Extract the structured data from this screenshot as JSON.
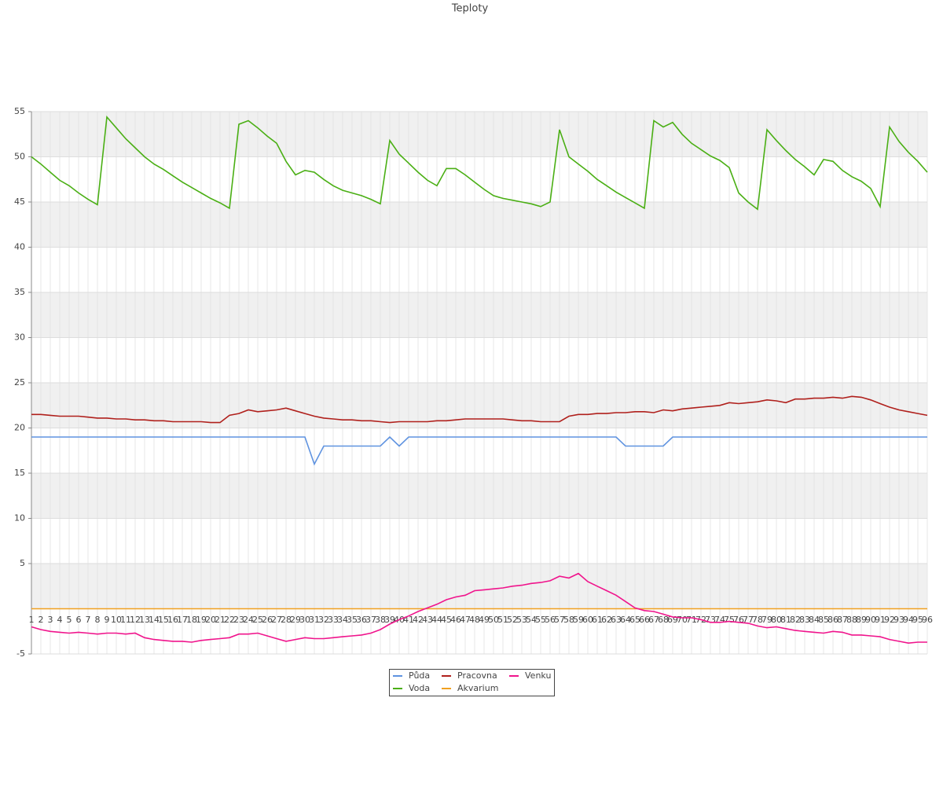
{
  "chart_data": {
    "type": "line",
    "title": "Teploty",
    "categories": [
      "1",
      "2",
      "3",
      "4",
      "5",
      "6",
      "7",
      "8",
      "9",
      "10",
      "11",
      "12",
      "13",
      "14",
      "15",
      "16",
      "17",
      "18",
      "19",
      "20",
      "21",
      "22",
      "23",
      "24",
      "25",
      "26",
      "27",
      "28",
      "29",
      "30",
      "31",
      "32",
      "33",
      "34",
      "35",
      "36",
      "37",
      "38",
      "39",
      "40",
      "41",
      "42",
      "43",
      "44",
      "45",
      "46",
      "47",
      "48",
      "49",
      "50",
      "51",
      "52",
      "53",
      "54",
      "55",
      "56",
      "57",
      "58",
      "59",
      "60",
      "61",
      "62",
      "63",
      "64",
      "65",
      "66",
      "67",
      "68",
      "69",
      "70",
      "71",
      "72",
      "73",
      "74",
      "75",
      "76",
      "77",
      "78",
      "79",
      "80",
      "81",
      "82",
      "83",
      "84",
      "85",
      "86",
      "87",
      "88",
      "89",
      "90",
      "91",
      "92",
      "93",
      "94",
      "95",
      "96"
    ],
    "ylim": [
      -5,
      55
    ],
    "yticks": [
      -5,
      5,
      10,
      15,
      20,
      25,
      30,
      35,
      40,
      45,
      50,
      55
    ],
    "grid": true,
    "series": [
      {
        "name": "Půda",
        "color": "#5f93e0",
        "values": [
          19,
          19,
          19,
          19,
          19,
          19,
          19,
          19,
          19,
          19,
          19,
          19,
          19,
          19,
          19,
          19,
          19,
          19,
          19,
          19,
          19,
          19,
          19,
          19,
          19,
          19,
          19,
          19,
          19,
          19,
          16,
          18,
          18,
          18,
          18,
          18,
          18,
          18,
          19,
          18,
          19,
          19,
          19,
          19,
          19,
          19,
          19,
          19,
          19,
          19,
          19,
          19,
          19,
          19,
          19,
          19,
          19,
          19,
          19,
          19,
          19,
          19,
          19,
          18,
          18,
          18,
          18,
          18,
          19,
          19,
          19,
          19,
          19,
          19,
          19,
          19,
          19,
          19,
          19,
          19,
          19,
          19,
          19,
          19,
          19,
          19,
          19,
          19,
          19,
          19,
          19,
          19,
          19,
          19,
          19,
          19
        ]
      },
      {
        "name": "Voda",
        "color": "#4aaf14",
        "values": [
          50.0,
          49.2,
          48.3,
          47.4,
          46.8,
          46.0,
          45.3,
          44.7,
          54.4,
          53.2,
          52.0,
          51.0,
          50.0,
          49.2,
          48.6,
          47.9,
          47.2,
          46.6,
          46.0,
          45.4,
          44.9,
          44.3,
          53.6,
          54.0,
          53.2,
          52.3,
          51.5,
          49.5,
          48.0,
          48.5,
          48.3,
          47.5,
          46.8,
          46.3,
          46.0,
          45.7,
          45.3,
          44.8,
          51.8,
          50.3,
          49.3,
          48.3,
          47.4,
          46.8,
          48.7,
          48.7,
          48.0,
          47.2,
          46.4,
          45.7,
          45.4,
          45.2,
          45.0,
          44.8,
          44.5,
          45.0,
          53.0,
          50.0,
          49.2,
          48.4,
          47.5,
          46.8,
          46.1,
          45.5,
          44.9,
          44.3,
          54.0,
          53.3,
          53.8,
          52.5,
          51.5,
          50.8,
          50.1,
          49.6,
          48.8,
          46.0,
          45.0,
          44.2,
          53.0,
          51.8,
          50.7,
          49.7,
          48.9,
          48.0,
          49.7,
          49.5,
          48.5,
          47.8,
          47.3,
          46.5,
          44.5,
          53.3,
          51.7,
          50.5,
          49.5,
          48.3
        ]
      },
      {
        "name": "Pracovna",
        "color": "#b0201c",
        "values": [
          21.5,
          21.5,
          21.4,
          21.3,
          21.3,
          21.3,
          21.2,
          21.1,
          21.1,
          21.0,
          21.0,
          20.9,
          20.9,
          20.8,
          20.8,
          20.7,
          20.7,
          20.7,
          20.7,
          20.6,
          20.6,
          21.4,
          21.6,
          22.0,
          21.8,
          21.9,
          22.0,
          22.2,
          21.9,
          21.6,
          21.3,
          21.1,
          21.0,
          20.9,
          20.9,
          20.8,
          20.8,
          20.7,
          20.6,
          20.7,
          20.7,
          20.7,
          20.7,
          20.8,
          20.8,
          20.9,
          21.0,
          21.0,
          21.0,
          21.0,
          21.0,
          20.9,
          20.8,
          20.8,
          20.7,
          20.7,
          20.7,
          21.3,
          21.5,
          21.5,
          21.6,
          21.6,
          21.7,
          21.7,
          21.8,
          21.8,
          21.7,
          22.0,
          21.9,
          22.1,
          22.2,
          22.3,
          22.4,
          22.5,
          22.8,
          22.7,
          22.8,
          22.9,
          23.1,
          23.0,
          22.8,
          23.2,
          23.2,
          23.3,
          23.3,
          23.4,
          23.3,
          23.5,
          23.4,
          23.1,
          22.7,
          22.3,
          22.0,
          21.8,
          21.6,
          21.4
        ]
      },
      {
        "name": "Akvarium",
        "color": "#f0a020",
        "values": [
          0,
          0,
          0,
          0,
          0,
          0,
          0,
          0,
          0,
          0,
          0,
          0,
          0,
          0,
          0,
          0,
          0,
          0,
          0,
          0,
          0,
          0,
          0,
          0,
          0,
          0,
          0,
          0,
          0,
          0,
          0,
          0,
          0,
          0,
          0,
          0,
          0,
          0,
          0,
          0,
          0,
          0,
          0,
          0,
          0,
          0,
          0,
          0,
          0,
          0,
          0,
          0,
          0,
          0,
          0,
          0,
          0,
          0,
          0,
          0,
          0,
          0,
          0,
          0,
          0,
          0,
          0,
          0,
          0,
          0,
          0,
          0,
          0,
          0,
          0,
          0,
          0,
          0,
          0,
          0,
          0,
          0,
          0,
          0,
          0,
          0,
          0,
          0,
          0,
          0,
          0,
          0,
          0,
          0,
          0,
          0
        ]
      },
      {
        "name": "Venku",
        "color": "#f0148c",
        "values": [
          -2.0,
          -2.3,
          -2.5,
          -2.6,
          -2.7,
          -2.6,
          -2.7,
          -2.8,
          -2.7,
          -2.7,
          -2.8,
          -2.7,
          -3.2,
          -3.4,
          -3.5,
          -3.6,
          -3.6,
          -3.7,
          -3.5,
          -3.4,
          -3.3,
          -3.2,
          -2.8,
          -2.8,
          -2.7,
          -3.0,
          -3.3,
          -3.6,
          -3.4,
          -3.2,
          -3.3,
          -3.3,
          -3.2,
          -3.1,
          -3.0,
          -2.9,
          -2.7,
          -2.3,
          -1.7,
          -1.2,
          -0.8,
          -0.3,
          0.1,
          0.5,
          1.0,
          1.3,
          1.5,
          2.0,
          2.1,
          2.2,
          2.3,
          2.5,
          2.6,
          2.8,
          2.9,
          3.1,
          3.6,
          3.4,
          3.9,
          3.0,
          2.5,
          2.0,
          1.5,
          0.8,
          0.1,
          -0.2,
          -0.3,
          -0.6,
          -0.9,
          -1.0,
          -1.0,
          -1.2,
          -1.5,
          -1.5,
          -1.4,
          -1.5,
          -1.6,
          -1.9,
          -2.1,
          -2.0,
          -2.2,
          -2.4,
          -2.5,
          -2.6,
          -2.7,
          -2.5,
          -2.6,
          -2.9,
          -2.9,
          -3.0,
          -3.1,
          -3.4,
          -3.6,
          -3.8,
          -3.7,
          -3.7
        ]
      }
    ]
  }
}
